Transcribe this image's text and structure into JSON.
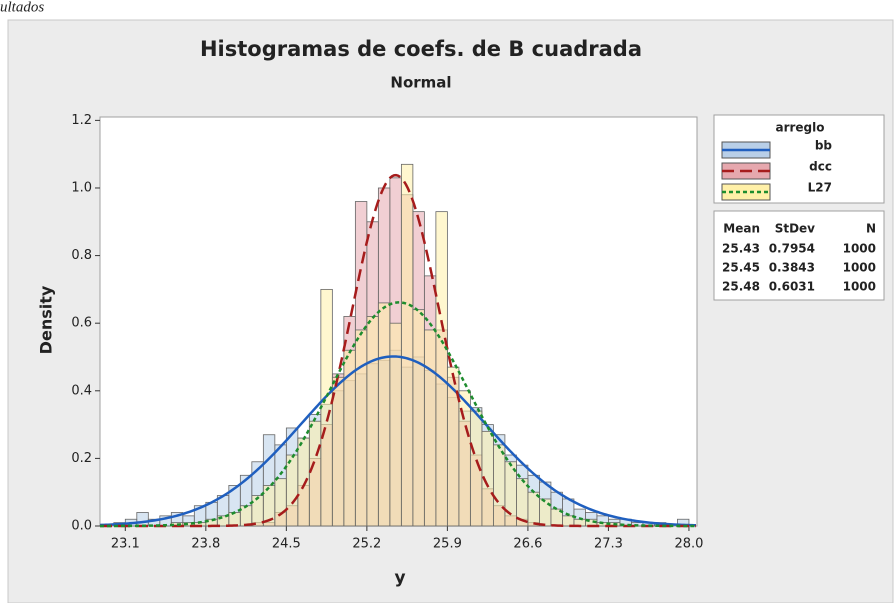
{
  "page_header": "ultados",
  "chart_data": {
    "type": "histogram",
    "title": "Histogramas de coefs. de B cuadrada",
    "subtitle": "Normal",
    "x_label": "y",
    "y_label": "Density",
    "legend_title": "arreglo",
    "stats_headers": [
      "Mean",
      "StDev",
      "N"
    ],
    "xlim": [
      22.88,
      28.07
    ],
    "ylim": [
      0,
      1.21
    ],
    "xticks": [
      23.1,
      23.8,
      24.5,
      25.2,
      25.9,
      26.6,
      27.3,
      {
        "value": 28.0,
        "label": "28.0"
      }
    ],
    "yticks": [
      {
        "value": 0,
        "label": "0.0"
      },
      0.2,
      0.4,
      0.6,
      0.8,
      {
        "value": 1.0,
        "label": "1.0"
      },
      1.2
    ],
    "bins": [
      22.9,
      23.0,
      23.1,
      23.2,
      23.3,
      23.4,
      23.5,
      23.6,
      23.7,
      23.8,
      23.9,
      24.0,
      24.1,
      24.2,
      24.3,
      24.4,
      24.5,
      24.6,
      24.7,
      24.8,
      24.9,
      25.0,
      25.1,
      25.2,
      25.3,
      25.4,
      25.5,
      25.6,
      25.7,
      25.8,
      25.9,
      26.0,
      26.1,
      26.2,
      26.3,
      26.4,
      26.5,
      26.6,
      26.7,
      26.8,
      26.9,
      27.0,
      27.1,
      27.2,
      27.3,
      27.4,
      27.5,
      27.6,
      27.7,
      27.8,
      27.9,
      28.0
    ],
    "series": [
      {
        "name": "bb",
        "color": "#b8cfe8",
        "line_color": "#1f5fbf",
        "dash": "solid",
        "mean": 25.43,
        "stdev": 0.7954,
        "n": 1000,
        "values": [
          0,
          0.01,
          0.02,
          0.04,
          0.02,
          0.03,
          0.04,
          0.03,
          0.06,
          0.07,
          0.09,
          0.12,
          0.15,
          0.19,
          0.27,
          0.24,
          0.29,
          0.26,
          0.33,
          0.36,
          0.4,
          0.43,
          0.45,
          0.48,
          0.49,
          0.52,
          0.47,
          0.5,
          0.46,
          0.42,
          0.38,
          0.34,
          0.35,
          0.3,
          0.27,
          0.21,
          0.18,
          0.15,
          0.13,
          0.1,
          0.08,
          0.05,
          0.04,
          0.03,
          0.02,
          0.02,
          0.01,
          0.01,
          0.01,
          0,
          0.02
        ]
      },
      {
        "name": "dcc",
        "color": "#e6a8ae",
        "line_color": "#a61c1c",
        "dash": "dashed",
        "mean": 25.45,
        "stdev": 0.3843,
        "n": 1000,
        "values": [
          0,
          0,
          0,
          0,
          0,
          0,
          0,
          0,
          0,
          0,
          0,
          0,
          0,
          0.01,
          0.01,
          0.04,
          0.06,
          0.12,
          0.2,
          0.3,
          0.45,
          0.62,
          0.96,
          0.9,
          1.0,
          1.03,
          0.98,
          0.93,
          0.74,
          0.58,
          0.44,
          0.31,
          0.21,
          0.11,
          0.06,
          0.03,
          0.02,
          0.01,
          0,
          0,
          0,
          0,
          0,
          0,
          0,
          0,
          0,
          0,
          0,
          0,
          0
        ]
      },
      {
        "name": "L27",
        "color": "#fff0a8",
        "line_color": "#1e8c2e",
        "dash": "dotted",
        "mean": 25.48,
        "stdev": 0.6031,
        "n": 1000,
        "values": [
          0,
          0,
          0,
          0,
          0,
          0,
          0.01,
          0.01,
          0.01,
          0.02,
          0.03,
          0.04,
          0.06,
          0.09,
          0.12,
          0.14,
          0.21,
          0.26,
          0.31,
          0.7,
          0.44,
          0.52,
          0.58,
          0.62,
          0.66,
          0.6,
          1.07,
          0.64,
          0.58,
          0.93,
          0.47,
          0.4,
          0.34,
          0.28,
          0.24,
          0.19,
          0.14,
          0.1,
          0.08,
          0.05,
          0.03,
          0.02,
          0.02,
          0.01,
          0.01,
          0,
          0,
          0,
          0,
          0,
          0
        ]
      }
    ]
  }
}
